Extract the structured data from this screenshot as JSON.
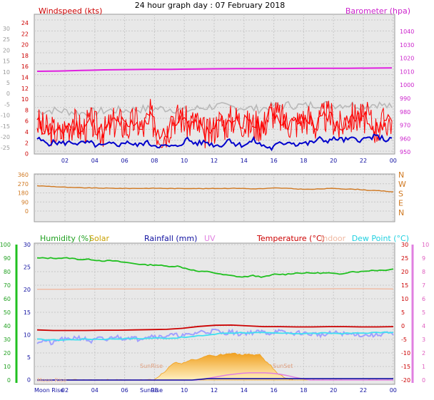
{
  "page": {
    "title": "24 hour graph day : 07 February 2018"
  },
  "colors": {
    "windspeed": "#ff0000",
    "gust": "#ff2020",
    "wind_avg": "#0000cc",
    "barometer": "#e020e0",
    "baro_grey": "#b8b8b8",
    "direction": "#d07820",
    "humidity": "#20c020",
    "solar": "#f0a020",
    "rainfall": "#1010a0",
    "uv": "#e080e0",
    "temperature": "#cc0000",
    "indoor": "#f0b8a0",
    "dewpoint": "#40e0f0",
    "humidity_fill": "#a0a0ff",
    "plot_bg": "#e8e8e8"
  },
  "chart_data": [
    {
      "type": "line",
      "panel": "wind",
      "labels": {
        "left": "Windspeed (kts)",
        "right": "Barometer (hpa)"
      },
      "x_ticks": [
        "02",
        "04",
        "06",
        "08",
        "10",
        "12",
        "14",
        "16",
        "18",
        "20",
        "22",
        "00"
      ],
      "outer_left_ticks": [
        "30",
        "25",
        "20",
        "15",
        "10",
        "5",
        "0",
        "-5",
        "-10",
        "-15",
        "-20",
        "-25"
      ],
      "left_ticks": [
        "24",
        "22",
        "20",
        "18",
        "16",
        "14",
        "12",
        "10",
        "8",
        "6",
        "4",
        "2",
        "0"
      ],
      "right_ticks": [
        "1040",
        "1030",
        "1020",
        "1010",
        "1000",
        "990",
        "980",
        "970",
        "960",
        "950"
      ],
      "ylim_left": [
        0,
        25
      ],
      "ylim_right": [
        955,
        1048
      ],
      "series": [
        {
          "role": "barometer",
          "y": [
            1011.6,
            1011.8,
            1012.2,
            1012.6,
            1012.8,
            1013.0,
            1013.0,
            1013.2,
            1013.4,
            1013.5,
            1013.5,
            1013.6,
            1013.7,
            1013.8,
            1013.8,
            1013.9,
            1014.0
          ]
        },
        {
          "role": "grey",
          "y": [
            7.5,
            7.8,
            7.6,
            7.3,
            7.5,
            7.8,
            7.8,
            8.0,
            8.1,
            8.1,
            7.7,
            8.2,
            8.6,
            8.4,
            8.3,
            8.0,
            8.6,
            8.8,
            8.6,
            9.0,
            8.8,
            8.9,
            8.7,
            9.0,
            8.3
          ]
        },
        {
          "role": "windspeed_avg",
          "y": [
            5.5,
            4.2,
            4.0,
            3.1,
            4.9,
            5.2,
            4.0,
            5.6,
            4.4,
            3.7,
            5.4,
            5.5,
            4.3,
            6.0,
            4.1,
            6.9,
            3.4,
            3.3,
            6.3,
            6.4,
            5.2,
            5.6,
            3.7,
            3.2,
            5.7,
            5.1,
            6.3,
            5.9,
            4.8,
            5.1,
            4.9,
            7.6,
            6.6,
            5.5,
            5.2,
            5.8,
            6.3,
            4.7,
            6.6,
            6.7,
            4.4,
            6.2,
            6.4,
            6.3,
            6.2,
            4.0,
            5.6,
            5.7
          ]
        },
        {
          "role": "wind_avg",
          "y": [
            2.4,
            1.8,
            1.5,
            1.7,
            1.5,
            1.6,
            1.7,
            1.4,
            1.6,
            1.5,
            1.0,
            1.0,
            1.3,
            1.4,
            1.2,
            2.0,
            1.1,
            1.2,
            1.7,
            1.3,
            1.1,
            0.9,
            0.9,
            0.8,
            1.5,
            2.3,
            1.6,
            1.5,
            1.8,
            1.3,
            1.1,
            1.3,
            2.4,
            1.3,
            1.2,
            1.4,
            2.1,
            1.3,
            0.9,
            0.5,
            1.3,
            1.5,
            1.9,
            1.3,
            1.6,
            1.4,
            1.8,
            2.3,
            2.0,
            2.2,
            2.4,
            2.1,
            2.2,
            2.4,
            2.1,
            2.5,
            2.7,
            2.7,
            2.1,
            2.5
          ]
        }
      ]
    },
    {
      "type": "line",
      "panel": "direction",
      "left_ticks": [
        "360",
        "270",
        "180",
        "90",
        "0"
      ],
      "right_labels": [
        "N",
        "W",
        "S",
        "E",
        "N"
      ],
      "ylim": [
        0,
        360
      ],
      "series": [
        {
          "role": "direction",
          "y": [
            250,
            245,
            238,
            232,
            230,
            228,
            226,
            225,
            224,
            225,
            226,
            224,
            223,
            225,
            222,
            224,
            225,
            226,
            220,
            222,
            228,
            225,
            218,
            215,
            220,
            225,
            218,
            215,
            205,
            200,
            190
          ]
        }
      ]
    },
    {
      "type": "line",
      "panel": "atmos",
      "labels": {
        "humidity": "Humidity (%)",
        "solar": "Solar",
        "rainfall": "Rainfall (mm)",
        "uv": "UV",
        "temperature": "Temperature (°C)",
        "indoor": "Indoor",
        "dewpoint": "Dew Point (°C)"
      },
      "annotations": [
        "Moon Rise",
        "SunRise",
        "SunRise",
        "SunSet"
      ],
      "x_ticks": [
        "02",
        "04",
        "06",
        "08",
        "10",
        "12",
        "14",
        "16",
        "18",
        "20",
        "22",
        "00"
      ],
      "humidity_ticks": [
        "100",
        "90",
        "80",
        "70",
        "60",
        "50",
        "40",
        "30",
        "20",
        "10",
        "0"
      ],
      "rain_ticks": [
        "30",
        "25",
        "20",
        "15",
        "10",
        "5",
        "0"
      ],
      "temp_ticks": [
        "30",
        "25",
        "20",
        "15",
        "10",
        "5",
        "0",
        "-5",
        "-10",
        "-15",
        "-20"
      ],
      "uv_ticks": [
        "10",
        "9",
        "8",
        "7",
        "6",
        "5",
        "4",
        "3",
        "2",
        "1",
        "0"
      ],
      "ylim_humidity": [
        0,
        100
      ],
      "ylim_rain": [
        0,
        30
      ],
      "ylim_temp": [
        -20,
        30
      ],
      "series": [
        {
          "role": "humidity",
          "y": [
            90,
            90,
            90,
            90,
            89,
            89,
            88,
            88,
            87,
            86,
            85,
            85,
            84,
            84,
            82,
            80,
            80,
            78,
            77,
            76,
            77,
            76,
            78,
            78,
            79,
            79,
            79,
            79,
            78,
            80,
            80,
            81,
            81,
            82
          ]
        },
        {
          "role": "indoor",
          "y": [
            13.5,
            13.5,
            13.6,
            13.6,
            13.6,
            13.6,
            13.6,
            13.6,
            13.6,
            13.6,
            13.6,
            13.7,
            13.7,
            13.6
          ]
        },
        {
          "role": "temperature",
          "y": [
            -1.5,
            -1.7,
            -1.7,
            -1.7,
            -1.6,
            -1.6,
            -1.5,
            -1.4,
            -1.3,
            -0.9,
            -0.2,
            0.2,
            0.3,
            0.0,
            -0.3,
            -0.3,
            -0.4,
            -0.4,
            -0.3,
            -0.3,
            -0.4,
            -0.4,
            -0.3
          ]
        },
        {
          "role": "dewpoint",
          "y": [
            -5.0,
            -5.2,
            -5.1,
            -4.9,
            -4.9,
            -4.7,
            -4.7,
            -4.5,
            -4.5,
            -4.1,
            -3.4,
            -2.7,
            -2.5,
            -2.6,
            -2.7,
            -2.8,
            -2.8,
            -2.7,
            -2.8,
            -2.7,
            -2.5,
            -2.4
          ]
        },
        {
          "role": "humidity_fill",
          "y": [
            -5.8,
            -5.4,
            -6.6,
            -4.8,
            -5.2,
            -4.1,
            -4.7,
            -5.8,
            -4.6,
            -5.3,
            -3.8,
            -4.6,
            -4.2,
            -4.9,
            -3.9,
            -3.6,
            -4.1,
            -3.4,
            -3.5,
            -3.6,
            -3.2,
            -2.1,
            -2.3,
            -1.6,
            -2.8,
            -2.1,
            -3.0,
            -2.6,
            -2.4,
            -2.2,
            -2.8,
            -1.8,
            -2.7,
            -2.8,
            -2.5,
            -3.0,
            -3.0,
            -3.5,
            -2.7,
            -2.6,
            -3.2,
            -2.9,
            -3.5,
            -3.4,
            -3.4,
            -2.5,
            -3.4
          ]
        },
        {
          "role": "solar",
          "y": [
            0,
            0,
            0,
            0,
            0,
            0,
            0,
            0,
            0,
            0,
            0,
            0,
            0,
            0,
            0,
            0,
            0,
            0,
            0,
            0,
            0,
            0,
            1.0,
            1.8,
            3.2,
            4.0,
            3.6,
            4.2,
            4.6,
            4.5,
            5.2,
            5.6,
            5.1,
            5.6,
            5.8,
            6.0,
            5.7,
            5.6,
            5.8,
            5.5,
            5.7,
            4.2,
            3.2,
            1.6,
            0.9,
            0.3,
            0,
            0,
            0,
            0,
            0,
            0,
            0,
            0,
            0,
            0,
            0,
            0,
            0,
            0,
            0,
            0,
            0,
            0,
            0
          ]
        },
        {
          "role": "uv",
          "y": [
            0,
            0,
            0,
            0,
            0,
            0,
            0,
            0,
            0,
            0,
            0,
            0,
            0,
            0,
            0,
            0,
            0,
            0,
            0,
            0,
            0,
            0,
            0.2,
            0.5,
            0.8,
            1.1,
            1.3,
            1.5,
            1.6,
            1.6,
            1.6,
            1.5,
            1.3,
            1.0,
            0.6,
            0.3,
            0,
            0,
            0,
            0,
            0,
            0,
            0,
            0,
            0,
            0,
            0,
            0
          ]
        },
        {
          "role": "rainfall",
          "y": [
            0,
            0,
            0,
            0,
            0,
            0,
            0,
            0,
            0,
            0,
            0,
            0.3,
            0.3,
            0.3,
            0.3,
            0.3,
            0.3,
            0.3,
            0.3,
            0.3,
            0.3,
            0.3,
            0.3,
            0.3
          ]
        }
      ]
    }
  ]
}
